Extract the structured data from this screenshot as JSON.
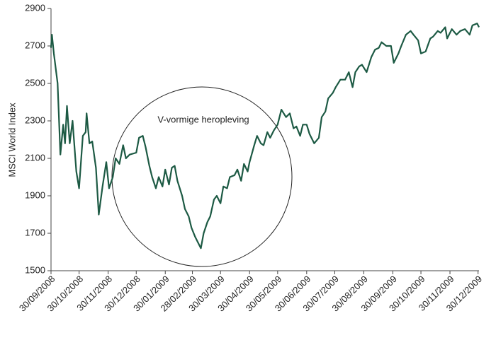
{
  "chart_data": {
    "type": "line",
    "y_label": "MSCI World Index",
    "annotation": "V-vormige heropleving",
    "color": "#1d5a44",
    "ylim": [
      1500,
      2900
    ],
    "yticks": [
      1500,
      1700,
      1900,
      2100,
      2300,
      2500,
      2700,
      2900
    ],
    "xlim": [
      "30/09/2008",
      "31/12/2009"
    ],
    "xticks": [
      "30/09/2008",
      "30/10/2008",
      "30/11/2008",
      "30/12/2008",
      "30/01/2009",
      "28/02/2009",
      "30/03/2009",
      "30/04/2009",
      "30/05/2009",
      "30/06/2009",
      "30/07/2009",
      "30/08/2009",
      "30/09/2009",
      "30/10/2009",
      "30/11/2009",
      "30/12/2009"
    ],
    "x": [
      "30/09/2008",
      "01/10/2008",
      "03/10/2008",
      "07/10/2008",
      "10/10/2008",
      "13/10/2008",
      "15/10/2008",
      "17/10/2008",
      "20/10/2008",
      "23/10/2008",
      "27/10/2008",
      "30/10/2008",
      "03/11/2008",
      "06/11/2008",
      "07/11/2008",
      "10/11/2008",
      "13/11/2008",
      "17/11/2008",
      "20/11/2008",
      "24/11/2008",
      "28/11/2008",
      "01/12/2008",
      "05/12/2008",
      "08/12/2008",
      "12/12/2008",
      "16/12/2008",
      "19/12/2008",
      "23/12/2008",
      "30/12/2008",
      "02/01/2009",
      "06/01/2009",
      "09/01/2009",
      "13/01/2009",
      "16/01/2009",
      "20/01/2009",
      "23/01/2009",
      "27/01/2009",
      "30/01/2009",
      "03/02/2009",
      "06/02/2009",
      "09/02/2009",
      "12/02/2009",
      "17/02/2009",
      "20/02/2009",
      "24/02/2009",
      "27/02/2009",
      "03/03/2009",
      "06/03/2009",
      "09/03/2009",
      "12/03/2009",
      "16/03/2009",
      "19/03/2009",
      "23/03/2009",
      "26/03/2009",
      "30/03/2009",
      "02/04/2009",
      "06/04/2009",
      "09/04/2009",
      "14/04/2009",
      "17/04/2009",
      "21/04/2009",
      "24/04/2009",
      "28/04/2009",
      "30/04/2009",
      "05/05/2009",
      "08/05/2009",
      "12/05/2009",
      "15/05/2009",
      "19/05/2009",
      "22/05/2009",
      "26/05/2009",
      "30/05/2009",
      "03/06/2009",
      "08/06/2009",
      "12/06/2009",
      "16/06/2009",
      "19/06/2009",
      "23/06/2009",
      "26/06/2009",
      "30/06/2009",
      "03/07/2009",
      "08/07/2009",
      "13/07/2009",
      "16/07/2009",
      "20/07/2009",
      "23/07/2009",
      "28/07/2009",
      "31/07/2009",
      "05/08/2009",
      "10/08/2009",
      "14/08/2009",
      "18/08/2009",
      "21/08/2009",
      "25/08/2009",
      "28/08/2009",
      "02/09/2009",
      "07/09/2009",
      "11/09/2009",
      "15/09/2009",
      "18/09/2009",
      "23/09/2009",
      "28/09/2009",
      "01/10/2009",
      "06/10/2009",
      "09/10/2009",
      "14/10/2009",
      "19/10/2009",
      "22/10/2009",
      "27/10/2009",
      "30/10/2009",
      "04/11/2009",
      "09/11/2009",
      "12/11/2009",
      "17/11/2009",
      "20/11/2009",
      "25/11/2009",
      "27/11/2009",
      "02/12/2009",
      "07/12/2009",
      "11/12/2009",
      "16/12/2009",
      "21/12/2009",
      "24/12/2009",
      "29/12/2009",
      "31/12/2009"
    ],
    "values": [
      2690,
      2760,
      2660,
      2500,
      2120,
      2280,
      2180,
      2380,
      2180,
      2300,
      2030,
      1940,
      2220,
      2240,
      2340,
      2180,
      2190,
      2050,
      1800,
      1950,
      2080,
      1940,
      2000,
      2100,
      2070,
      2170,
      2100,
      2120,
      2130,
      2210,
      2220,
      2160,
      2060,
      2000,
      1940,
      2000,
      1950,
      2040,
      1960,
      2050,
      2060,
      1980,
      1900,
      1830,
      1790,
      1730,
      1680,
      1650,
      1620,
      1700,
      1760,
      1790,
      1880,
      1900,
      1860,
      1950,
      1940,
      2000,
      2010,
      2040,
      1980,
      2070,
      2030,
      2080,
      2170,
      2220,
      2180,
      2170,
      2240,
      2210,
      2250,
      2280,
      2360,
      2320,
      2340,
      2260,
      2270,
      2220,
      2280,
      2280,
      2230,
      2180,
      2210,
      2320,
      2350,
      2420,
      2450,
      2480,
      2520,
      2520,
      2560,
      2480,
      2560,
      2590,
      2600,
      2560,
      2640,
      2680,
      2690,
      2720,
      2700,
      2700,
      2610,
      2660,
      2700,
      2760,
      2780,
      2760,
      2730,
      2660,
      2670,
      2740,
      2750,
      2780,
      2770,
      2800,
      2740,
      2790,
      2760,
      2780,
      2790,
      2760,
      2810,
      2820,
      2800
    ]
  }
}
